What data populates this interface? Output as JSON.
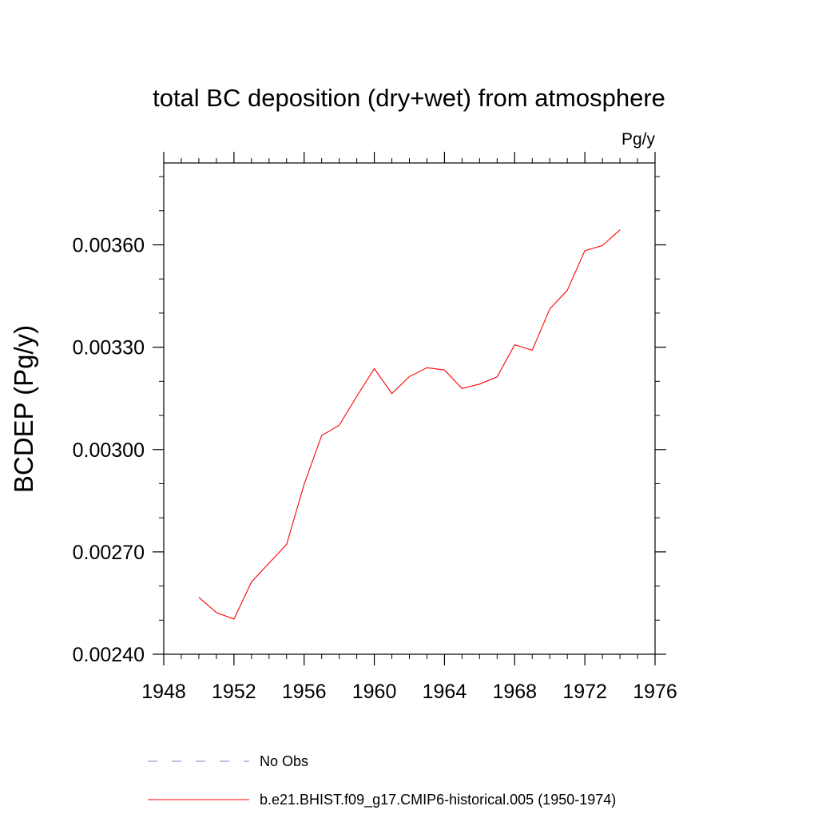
{
  "chart_data": {
    "type": "line",
    "title": "total BC deposition (dry+wet) from atmosphere",
    "units_label": "Pg/y",
    "ylabel": "BCDEP  (Pg/y)",
    "xlabel": "",
    "xlim": [
      1948,
      1976
    ],
    "ylim": [
      0.0024,
      0.00384
    ],
    "x_ticks": [
      1948,
      1952,
      1956,
      1960,
      1964,
      1968,
      1972,
      1976
    ],
    "x_tick_labels": [
      "1948",
      "1952",
      "1956",
      "1960",
      "1964",
      "1968",
      "1972",
      "1976"
    ],
    "y_ticks": [
      0.0024,
      0.0027,
      0.003,
      0.0033,
      0.0036
    ],
    "y_tick_labels": [
      "0.00240",
      "0.00270",
      "0.00300",
      "0.00330",
      "0.00360"
    ],
    "grid": false,
    "legend_position": "bottom",
    "series": [
      {
        "name": "b.e21.BHIST.f09_g17.CMIP6-historical.005 (1950-1974)",
        "color": "#ff0000",
        "style": "solid",
        "x": [
          1950,
          1951,
          1952,
          1953,
          1954,
          1955,
          1956,
          1957,
          1958,
          1959,
          1960,
          1961,
          1962,
          1963,
          1964,
          1965,
          1966,
          1967,
          1968,
          1969,
          1970,
          1971,
          1972,
          1973,
          1974
        ],
        "y": [
          0.002567,
          0.002522,
          0.002503,
          0.002612,
          0.002667,
          0.002722,
          0.002898,
          0.003041,
          0.003071,
          0.003156,
          0.003237,
          0.003164,
          0.003214,
          0.00324,
          0.003233,
          0.003179,
          0.003192,
          0.003213,
          0.003307,
          0.003291,
          0.003412,
          0.003467,
          0.003583,
          0.003598,
          0.003644
        ]
      }
    ],
    "legend": [
      {
        "label": "No Obs",
        "color": "#8080c0",
        "style": "dashed"
      },
      {
        "label": "b.e21.BHIST.f09_g17.CMIP6-historical.005 (1950-1974)",
        "color": "#ff0000",
        "style": "solid"
      }
    ]
  }
}
